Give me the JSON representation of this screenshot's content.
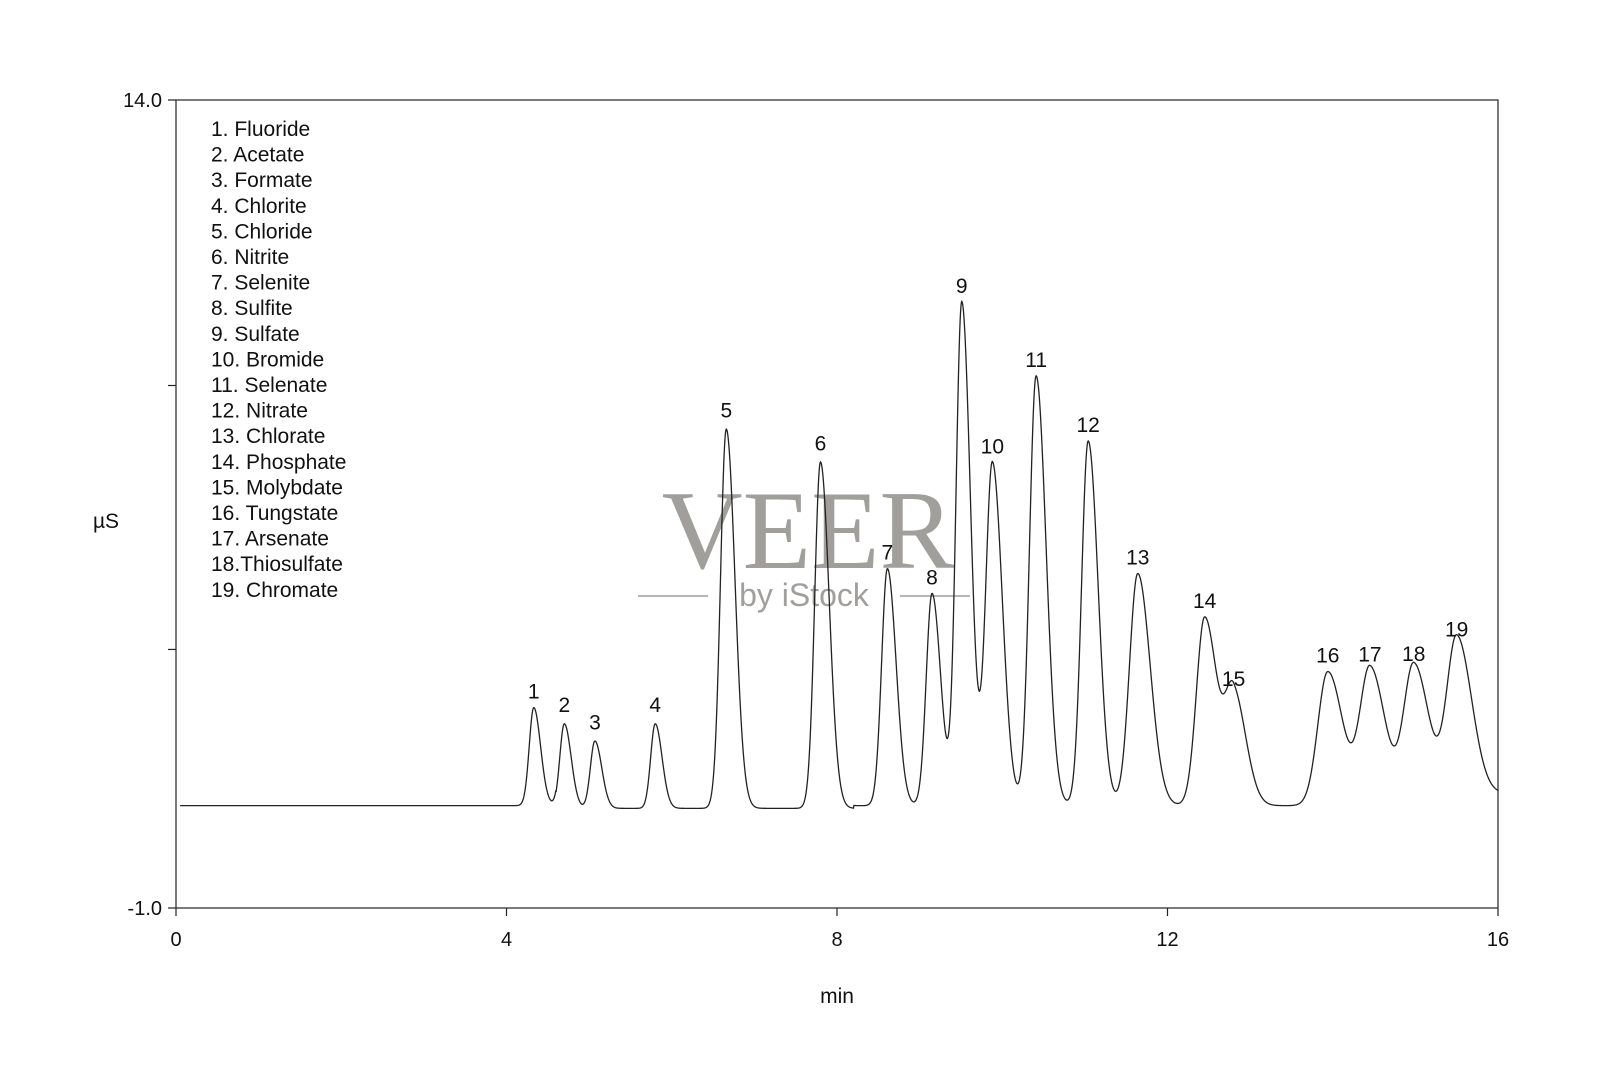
{
  "chart_data": {
    "type": "line",
    "xlabel": "min",
    "ylabel": "µS",
    "xlim": [
      0,
      16
    ],
    "ylim": [
      -1.0,
      14.0
    ],
    "xticks": [
      0,
      4,
      8,
      12,
      16
    ],
    "xtick_labels": [
      "0",
      "4",
      "8",
      "12",
      "16"
    ],
    "yticks": [
      -1.0,
      14.0
    ],
    "ytick_labels": [
      "-1.0",
      "14.0"
    ],
    "y_minor_ticks": [
      3.8,
      8.7
    ],
    "grid": false,
    "legend_position": "top-left",
    "legend": [
      "1.  Fluoride",
      "2.  Acetate",
      "3. Formate",
      "4.  Chlorite",
      "5.  Chloride",
      "6.  Nitrite",
      "7.  Selenite",
      "8.  Sulfite",
      "9.  Sulfate",
      "10. Bromide",
      "11. Selenate",
      "12. Nitrate",
      "13. Chlorate",
      "14. Phosphate",
      "15. Molybdate",
      "16. Tungstate",
      "17. Arsenate",
      "18.Thiosulfate",
      "19. Chromate"
    ],
    "baseline": 0.9,
    "peaks": [
      {
        "label": "1",
        "x": 4.33,
        "y": 2.72
      },
      {
        "label": "2",
        "x": 4.7,
        "y": 2.47
      },
      {
        "label": "3",
        "x": 5.07,
        "y": 2.15
      },
      {
        "label": "4",
        "x": 5.8,
        "y": 2.47
      },
      {
        "label": "5",
        "x": 6.66,
        "y": 7.94
      },
      {
        "label": "6",
        "x": 7.8,
        "y": 7.33
      },
      {
        "label": "7",
        "x": 8.61,
        "y": 5.3
      },
      {
        "label": "8",
        "x": 9.15,
        "y": 4.84
      },
      {
        "label": "9",
        "x": 9.51,
        "y": 10.25
      },
      {
        "label": "10",
        "x": 9.88,
        "y": 7.27
      },
      {
        "label": "11",
        "x": 10.41,
        "y": 8.88
      },
      {
        "label": "12",
        "x": 11.04,
        "y": 7.67
      },
      {
        "label": "13",
        "x": 11.64,
        "y": 5.21
      },
      {
        "label": "14",
        "x": 12.45,
        "y": 4.4
      },
      {
        "label": "15",
        "x": 12.8,
        "y": 2.95
      },
      {
        "label": "16",
        "x": 13.94,
        "y": 3.39
      },
      {
        "label": "17",
        "x": 14.45,
        "y": 3.41
      },
      {
        "label": "18",
        "x": 14.98,
        "y": 3.42
      },
      {
        "label": "19",
        "x": 15.5,
        "y": 3.87
      }
    ]
  },
  "watermark": {
    "title": "VEER",
    "subtitle": "by iStock",
    "color": "#a19f9c"
  }
}
